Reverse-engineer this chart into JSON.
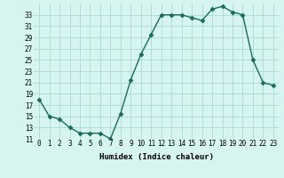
{
  "x": [
    0,
    1,
    2,
    3,
    4,
    5,
    6,
    7,
    8,
    9,
    10,
    11,
    12,
    13,
    14,
    15,
    16,
    17,
    18,
    19,
    20,
    21,
    22,
    23
  ],
  "y": [
    18,
    15,
    14.5,
    13,
    12,
    12,
    12,
    11,
    15.5,
    21.5,
    26,
    29.5,
    33,
    33,
    33,
    32.5,
    32,
    34,
    34.5,
    33.5,
    33,
    25,
    21,
    20.5
  ],
  "line_color": "#1a6b5a",
  "marker_color": "#1a6b5a",
  "bg_color": "#d6f5f0",
  "grid_color": "#b0ddd8",
  "xlabel": "Humidex (Indice chaleur)",
  "ylim": [
    11,
    35
  ],
  "yticks": [
    11,
    13,
    15,
    17,
    19,
    21,
    23,
    25,
    27,
    29,
    31,
    33
  ],
  "xticks": [
    0,
    1,
    2,
    3,
    4,
    5,
    6,
    7,
    8,
    9,
    10,
    11,
    12,
    13,
    14,
    15,
    16,
    17,
    18,
    19,
    20,
    21,
    22,
    23
  ],
  "xlim": [
    -0.5,
    23.5
  ],
  "tick_fontsize": 5.5,
  "xlabel_fontsize": 6.5,
  "linewidth": 1.0,
  "markersize": 2.5
}
